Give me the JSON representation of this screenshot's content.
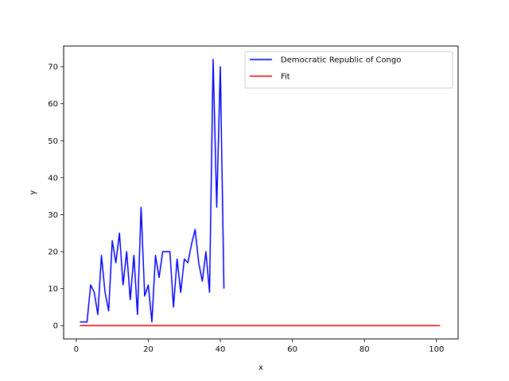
{
  "chart_data": {
    "type": "line",
    "title": "",
    "xlabel": "x",
    "ylabel": "y",
    "xlim": [
      -3.5,
      106
    ],
    "ylim": [
      -3.6,
      75.6
    ],
    "xticks": [
      0,
      20,
      40,
      60,
      80,
      100
    ],
    "yticks": [
      0,
      10,
      20,
      30,
      40,
      50,
      60,
      70
    ],
    "grid": false,
    "legend_position": "top-right",
    "series": [
      {
        "name": "Democratic Republic of Congo",
        "color": "#0000ff",
        "x": [
          1,
          2,
          3,
          4,
          5,
          6,
          7,
          8,
          9,
          10,
          11,
          12,
          13,
          14,
          15,
          16,
          17,
          18,
          19,
          20,
          21,
          22,
          23,
          24,
          25,
          26,
          27,
          28,
          29,
          30,
          31,
          32,
          33,
          34,
          35,
          36,
          37,
          38,
          39,
          40,
          41
        ],
        "y": [
          1,
          1,
          1,
          11,
          9,
          3,
          19,
          9,
          4,
          23,
          17,
          25,
          11,
          20,
          7,
          19,
          3,
          32,
          8,
          11,
          1,
          19,
          13,
          20,
          20,
          20,
          5,
          18,
          9,
          18,
          17,
          22,
          26,
          17,
          12,
          20,
          9,
          72,
          32,
          70,
          10
        ]
      },
      {
        "name": "Fit",
        "color": "#ff0000",
        "x": [
          1,
          101
        ],
        "y": [
          0,
          0
        ]
      }
    ]
  }
}
